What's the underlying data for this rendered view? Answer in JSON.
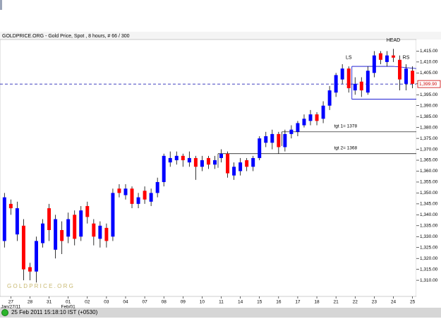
{
  "chart_data": {
    "type": "candlestick",
    "title": "GOLDPRICE.ORG - Gold Price, Spot , 8 hours, # 66 / 300",
    "watermark": "G O L D P R I C E . O R G",
    "footer": "25 Feb 2011 15:18:10 IST (+0530)",
    "up_color": "#0000ff",
    "down_color": "#ff0000",
    "open": [
      1328,
      1345,
      1331,
      1335,
      1316,
      1314,
      1327,
      1343,
      1324,
      1333,
      1330,
      1340,
      1330,
      1344,
      1336,
      1329,
      1334,
      1330,
      1352,
      1349,
      1352,
      1345,
      1351,
      1346,
      1350,
      1355,
      1364,
      1365,
      1367,
      1364,
      1366,
      1362,
      1366,
      1363,
      1366,
      1368,
      1358,
      1360,
      1365,
      1362,
      1366,
      1373,
      1373,
      1377,
      1371,
      1377,
      1378,
      1381,
      1383,
      1386,
      1384,
      1390,
      1396,
      1402,
      1407,
      1397,
      1401,
      1396,
      1405,
      1414,
      1410,
      1413,
      1411,
      1400,
      1406
    ],
    "high": [
      1350,
      1347,
      1346,
      1338,
      1318,
      1330,
      1338,
      1345,
      1340,
      1337,
      1341,
      1342,
      1344,
      1346,
      1338,
      1337,
      1336,
      1352,
      1354,
      1354,
      1353,
      1350,
      1353,
      1352,
      1357,
      1368,
      1369,
      1369,
      1368,
      1369,
      1367,
      1367,
      1367,
      1367,
      1370,
      1369,
      1364,
      1366,
      1366,
      1367,
      1376,
      1378,
      1379,
      1378,
      1379,
      1381,
      1383,
      1386,
      1388,
      1387,
      1392,
      1399,
      1405,
      1409,
      1408,
      1403,
      1403,
      1408,
      1415,
      1415,
      1415,
      1416,
      1413,
      1409,
      1408
    ],
    "low": [
      1325,
      1340,
      1328,
      1310,
      1310,
      1309,
      1325,
      1328,
      1320,
      1322,
      1327,
      1326,
      1328,
      1336,
      1326,
      1325,
      1325,
      1328,
      1348,
      1347,
      1343,
      1343,
      1345,
      1344,
      1348,
      1353,
      1362,
      1363,
      1362,
      1362,
      1356,
      1360,
      1361,
      1361,
      1364,
      1357,
      1356,
      1358,
      1360,
      1360,
      1365,
      1371,
      1370,
      1368,
      1369,
      1375,
      1376,
      1380,
      1381,
      1381,
      1382,
      1388,
      1394,
      1400,
      1396,
      1395,
      1394,
      1395,
      1403,
      1409,
      1408,
      1410,
      1397,
      1397,
      1398
    ],
    "close": [
      1348,
      1343,
      1343,
      1315,
      1314,
      1328,
      1336,
      1333,
      1338,
      1328,
      1338,
      1329,
      1342,
      1339,
      1330,
      1335,
      1328,
      1350,
      1350,
      1352,
      1345,
      1348,
      1347,
      1350,
      1355,
      1367,
      1366,
      1367,
      1365,
      1366,
      1362,
      1365,
      1363,
      1365,
      1368,
      1359,
      1362,
      1364,
      1362,
      1366,
      1375,
      1376,
      1377,
      1371,
      1377,
      1379,
      1382,
      1384,
      1386,
      1383,
      1390,
      1397,
      1404,
      1407,
      1398,
      1400,
      1397,
      1406,
      1413,
      1411,
      1413,
      1412,
      1402,
      1407,
      1400
    ],
    "xlim": [
      -0.7,
      64.6
    ],
    "xticks": [
      {
        "value": 1,
        "label": "27"
      },
      {
        "value": 4,
        "label": "28"
      },
      {
        "value": 7,
        "label": "31"
      },
      {
        "value": 10,
        "label": "01"
      },
      {
        "value": 13,
        "label": "02"
      },
      {
        "value": 16,
        "label": "03"
      },
      {
        "value": 19,
        "label": "04"
      },
      {
        "value": 22,
        "label": "07"
      },
      {
        "value": 25,
        "label": "08"
      },
      {
        "value": 28,
        "label": "09"
      },
      {
        "value": 31,
        "label": "10"
      },
      {
        "value": 34,
        "label": "11"
      },
      {
        "value": 37,
        "label": "14"
      },
      {
        "value": 40,
        "label": "15"
      },
      {
        "value": 43,
        "label": "16"
      },
      {
        "value": 46,
        "label": "17"
      },
      {
        "value": 49,
        "label": "18"
      },
      {
        "value": 52,
        "label": "21"
      },
      {
        "value": 55,
        "label": "22"
      },
      {
        "value": 58,
        "label": "23"
      },
      {
        "value": 61,
        "label": "24"
      },
      {
        "value": 64,
        "label": "25"
      }
    ],
    "xsubticks": [
      {
        "value": 1,
        "label": "Jan/27/11"
      },
      {
        "value": 10,
        "label": "Feb/01"
      }
    ],
    "ylim": [
      1302.6,
      1420.3
    ],
    "yticks": [
      {
        "value": 1310,
        "label": "1,310.00"
      },
      {
        "value": 1315,
        "label": "1,315.00"
      },
      {
        "value": 1320,
        "label": "1,320.00"
      },
      {
        "value": 1325,
        "label": "1,325.00"
      },
      {
        "value": 1330,
        "label": "1,330.00"
      },
      {
        "value": 1335,
        "label": "1,335.00"
      },
      {
        "value": 1340,
        "label": "1,340.00"
      },
      {
        "value": 1345,
        "label": "1,345.00"
      },
      {
        "value": 1350,
        "label": "1,350.00"
      },
      {
        "value": 1355,
        "label": "1,355.00"
      },
      {
        "value": 1360,
        "label": "1,360.00"
      },
      {
        "value": 1365,
        "label": "1,365.00"
      },
      {
        "value": 1370,
        "label": "1,370.00"
      },
      {
        "value": 1375,
        "label": "1,375.00"
      },
      {
        "value": 1380,
        "label": "1,380.00"
      },
      {
        "value": 1385,
        "label": "1,385.00"
      },
      {
        "value": 1390,
        "label": "1,390.00"
      },
      {
        "value": 1395,
        "label": "1,395.00"
      },
      {
        "value": 1400,
        "label": "1,400.00"
      },
      {
        "value": 1405,
        "label": "1,405.00"
      },
      {
        "value": 1410,
        "label": "1,410.00"
      },
      {
        "value": 1415,
        "label": "1,415.00"
      }
    ],
    "current_price": {
      "value": 1399.9,
      "label": "1,399.90"
    },
    "targets": [
      {
        "value": 1378,
        "label": "tgt 1= 1378"
      },
      {
        "value": 1368,
        "label": "tgt 2= 1368"
      }
    ],
    "annotations": [
      {
        "x": 54,
        "y": 1412,
        "text": "LS"
      },
      {
        "x": 61,
        "y": 1420,
        "text": "HEAD"
      },
      {
        "x": 63,
        "y": 1412,
        "text": "RS"
      }
    ]
  }
}
